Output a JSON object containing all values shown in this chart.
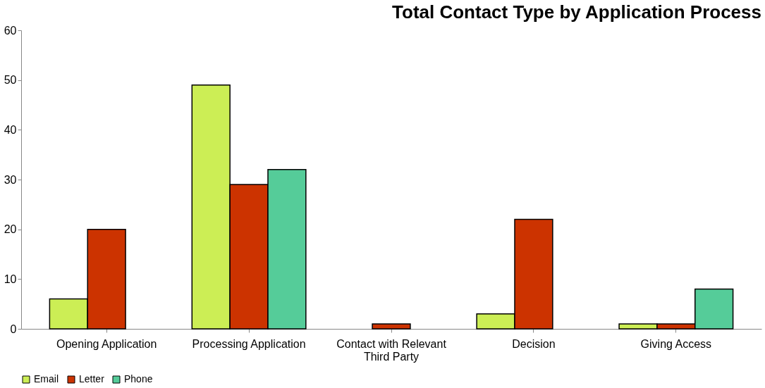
{
  "chart_data": {
    "type": "bar",
    "title": "Total Contact Type by Application Process",
    "categories": [
      "Opening Application",
      "Processing Application",
      "Contact with Relevant Third Party",
      "Decision",
      "Giving Access"
    ],
    "series": [
      {
        "name": "Email",
        "color": "#ccee55",
        "values": [
          6,
          49,
          null,
          3,
          1
        ]
      },
      {
        "name": "Letter",
        "color": "#cc3300",
        "values": [
          20,
          29,
          1,
          22,
          1
        ]
      },
      {
        "name": "Phone",
        "color": "#55cc99",
        "values": [
          null,
          32,
          null,
          null,
          8
        ]
      }
    ],
    "ylim": [
      0,
      60
    ],
    "yticks": [
      0,
      10,
      20,
      30,
      40,
      50,
      60
    ],
    "grid": false,
    "legend": "bottom"
  }
}
